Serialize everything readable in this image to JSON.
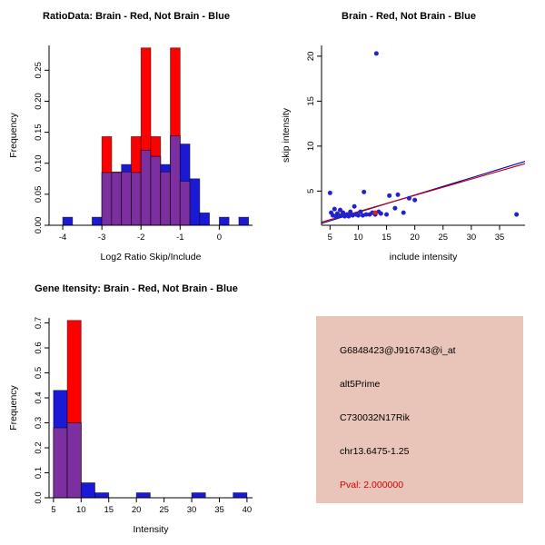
{
  "page": {
    "background": "#FFFFFF"
  },
  "colors": {
    "red_series": "#FF0000",
    "blue_series": "#1A1AD6",
    "overlap_purple": "#7C2F9E",
    "axis": "#000000"
  },
  "chart_data": [
    {
      "id": "ratio_histogram",
      "type": "bar",
      "title": "RatioData: Brain - Red, Not Brain - Blue",
      "xlabel": "Log2 Ratio Skip/Include",
      "ylabel": "Frequency",
      "xlim": [
        -4.35,
        0.85
      ],
      "ylim": [
        0,
        0.29
      ],
      "xticks": [
        -4,
        -3,
        -2,
        -1,
        0
      ],
      "yticks": [
        0,
        0.05,
        0.1,
        0.15,
        0.2,
        0.25
      ],
      "ytick_labels": [
        "0.00",
        "0.05",
        "0.10",
        "0.15",
        "0.20",
        "0.25"
      ],
      "bin_width": 0.25,
      "overlap_color": "#7C2F9E",
      "series": [
        {
          "name": "Brain",
          "color": "#FF0000",
          "bin_starts": [
            -3.0,
            -2.75,
            -2.5,
            -2.25,
            -2.0,
            -1.75,
            -1.5,
            -1.25,
            -1.0
          ],
          "heights": [
            0.143,
            0.086,
            0.086,
            0.143,
            0.286,
            0.143,
            0.086,
            0.286,
            0.071
          ]
        },
        {
          "name": "Not Brain",
          "color": "#1A1AD6",
          "bin_starts": [
            -4.0,
            -3.25,
            -3.0,
            -2.75,
            -2.5,
            -2.25,
            -2.0,
            -1.75,
            -1.5,
            -1.25,
            -1.0,
            -0.75,
            -0.5,
            0.0,
            0.5
          ],
          "heights": [
            0.013,
            0.013,
            0.085,
            0.085,
            0.098,
            0.085,
            0.121,
            0.111,
            0.098,
            0.144,
            0.131,
            0.075,
            0.02,
            0.013,
            0.013
          ]
        }
      ]
    },
    {
      "id": "intensity_scatter",
      "type": "scatter",
      "title": "Brain - Red, Not Brain - Blue",
      "xlabel": "include intensity",
      "ylabel": "skip intensity",
      "xlim": [
        3.5,
        39.5
      ],
      "ylim": [
        1.2,
        21.2
      ],
      "xticks": [
        5,
        10,
        15,
        20,
        25,
        30,
        35
      ],
      "yticks": [
        5,
        10,
        15,
        20
      ],
      "ytick_labels": [
        "5",
        "10",
        "15",
        "20"
      ],
      "series": [
        {
          "name": "Not Brain",
          "color": "#2222CC",
          "points": [
            [
              5,
              4.8
            ],
            [
              5.2,
              2.6
            ],
            [
              5.5,
              2.3
            ],
            [
              5.8,
              3.0
            ],
            [
              6,
              2.2
            ],
            [
              6.3,
              2.5
            ],
            [
              6.5,
              2.2
            ],
            [
              6.8,
              2.9
            ],
            [
              7,
              2.3
            ],
            [
              7.3,
              2.6
            ],
            [
              7.6,
              2.2
            ],
            [
              8,
              2.4
            ],
            [
              8.3,
              2.2
            ],
            [
              8.6,
              2.7
            ],
            [
              9,
              2.3
            ],
            [
              9.3,
              3.3
            ],
            [
              9.6,
              2.4
            ],
            [
              10,
              2.3
            ],
            [
              10.4,
              2.7
            ],
            [
              10.8,
              2.3
            ],
            [
              11,
              4.9
            ],
            [
              11.4,
              2.4
            ],
            [
              12,
              2.4
            ],
            [
              12.5,
              2.6
            ],
            [
              13,
              2.4
            ],
            [
              13.2,
              20.3
            ],
            [
              13.6,
              2.7
            ],
            [
              14,
              2.5
            ],
            [
              15,
              2.4
            ],
            [
              15.5,
              4.5
            ],
            [
              16.5,
              3.1
            ],
            [
              17,
              4.6
            ],
            [
              18,
              2.6
            ],
            [
              19,
              4.2
            ],
            [
              20,
              4.0
            ],
            [
              38,
              2.4
            ]
          ]
        },
        {
          "name": "Brain",
          "color": "#EE2200",
          "points": [
            [
              13,
              2.6
            ]
          ]
        }
      ],
      "lines": [
        {
          "x1": 3.5,
          "y1": 1.4,
          "x2": 39.5,
          "y2": 8.3,
          "color": "#0000BB"
        },
        {
          "x1": 3.5,
          "y1": 1.55,
          "x2": 39.5,
          "y2": 8.05,
          "color": "#BB0000"
        }
      ]
    },
    {
      "id": "gene_intensity_histogram",
      "type": "bar",
      "title": "Gene Itensity: Brain - Red, Not Brain - Blue",
      "xlabel": "Intensity",
      "ylabel": "Frequency",
      "xlim": [
        4.2,
        41
      ],
      "ylim": [
        0,
        0.72
      ],
      "xticks": [
        5,
        10,
        15,
        20,
        25,
        30,
        35,
        40
      ],
      "yticks": [
        0,
        0.1,
        0.2,
        0.3,
        0.4,
        0.5,
        0.6,
        0.7
      ],
      "ytick_labels": [
        "0.0",
        "0.1",
        "0.2",
        "0.3",
        "0.4",
        "0.5",
        "0.6",
        "0.7"
      ],
      "bin_width": 2.5,
      "overlap_color": "#7C2F9E",
      "series": [
        {
          "name": "Brain",
          "color": "#FF0000",
          "bin_starts": [
            5,
            7.5
          ],
          "heights": [
            0.28,
            0.71
          ]
        },
        {
          "name": "Not Brain",
          "color": "#1A1AD6",
          "bin_starts": [
            5,
            7.5,
            10,
            12.5,
            20,
            30,
            37.5
          ],
          "heights": [
            0.43,
            0.3,
            0.06,
            0.02,
            0.02,
            0.02,
            0.02
          ]
        }
      ]
    }
  ],
  "info_box": {
    "background": "#E8C5B8",
    "lines": [
      {
        "text": "G6848423@J916743@i_at",
        "color": "#000000"
      },
      {
        "text": "alt5Prime",
        "color": "#000000"
      },
      {
        "text": "C730032N17Rik",
        "color": "#000000"
      },
      {
        "text": "chr13.6475-1.25",
        "color": "#000000"
      },
      {
        "text": "Pval: 2.000000",
        "color": "#D40000"
      }
    ]
  }
}
